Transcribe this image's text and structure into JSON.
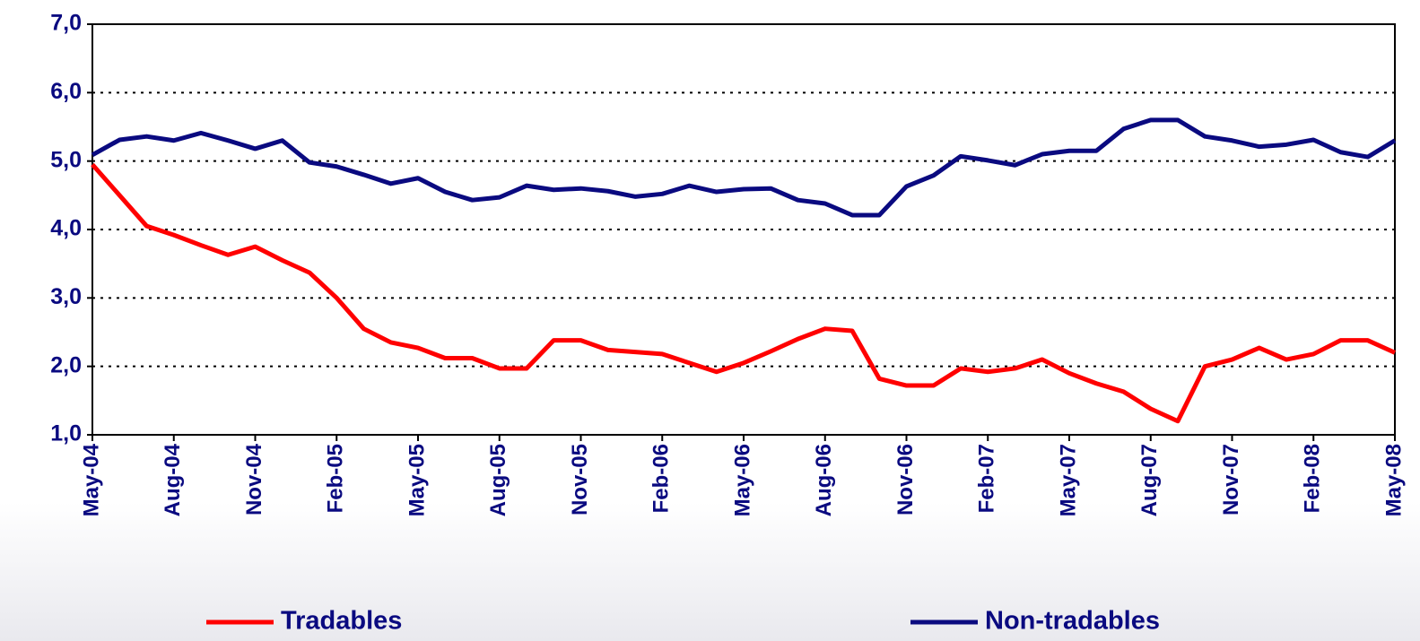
{
  "chart_data": {
    "type": "line",
    "categories": [
      "May-04",
      null,
      null,
      "Aug-04",
      null,
      null,
      "Nov-04",
      null,
      null,
      "Feb-05",
      null,
      null,
      "May-05",
      null,
      null,
      "Aug-05",
      null,
      null,
      "Nov-05",
      null,
      null,
      "Feb-06",
      null,
      null,
      "May-06",
      null,
      null,
      "Aug-06",
      null,
      null,
      "Nov-06",
      null,
      null,
      "Feb-07",
      null,
      null,
      "May-07",
      null,
      null,
      "Aug-07",
      null,
      null,
      "Nov-07",
      null,
      null,
      "Feb-08",
      null,
      null,
      "May-08"
    ],
    "series": [
      {
        "name": "Tradables",
        "color": "#ff0000",
        "values": [
          4.95,
          4.5,
          4.05,
          3.92,
          3.77,
          3.63,
          3.75,
          3.55,
          3.37,
          3.0,
          2.55,
          2.35,
          2.27,
          2.12,
          2.12,
          1.97,
          1.97,
          2.38,
          2.38,
          2.24,
          2.21,
          2.18,
          2.05,
          1.92,
          2.05,
          2.22,
          2.4,
          2.55,
          2.52,
          1.82,
          1.72,
          1.72,
          1.97,
          1.92,
          1.97,
          2.1,
          1.9,
          1.75,
          1.63,
          1.38,
          1.2,
          2.0,
          2.1,
          2.27,
          2.1,
          2.18,
          2.38,
          2.38,
          2.2
        ]
      },
      {
        "name": "Non-tradables",
        "color": "#0a0a80",
        "values": [
          5.09,
          5.31,
          5.36,
          5.3,
          5.41,
          5.3,
          5.18,
          5.3,
          4.98,
          4.92,
          4.8,
          4.67,
          4.75,
          4.55,
          4.43,
          4.47,
          4.64,
          4.58,
          4.6,
          4.56,
          4.48,
          4.52,
          4.64,
          4.55,
          4.59,
          4.6,
          4.43,
          4.38,
          4.21,
          4.21,
          4.63,
          4.79,
          5.07,
          5.01,
          4.94,
          5.1,
          5.15,
          5.15,
          5.47,
          5.6,
          5.6,
          5.36,
          5.3,
          5.21,
          5.24,
          5.31,
          5.13,
          5.06,
          5.3
        ]
      }
    ],
    "ylim": [
      1,
      7
    ],
    "yticks": [
      {
        "value": 1,
        "label": "1,0"
      },
      {
        "value": 2,
        "label": "2,0"
      },
      {
        "value": 3,
        "label": "3,0"
      },
      {
        "value": 4,
        "label": "4,0"
      },
      {
        "value": 5,
        "label": "5,0"
      },
      {
        "value": 6,
        "label": "6,0"
      },
      {
        "value": 7,
        "label": "7,0"
      }
    ],
    "grid": true,
    "legend": "bottom"
  }
}
